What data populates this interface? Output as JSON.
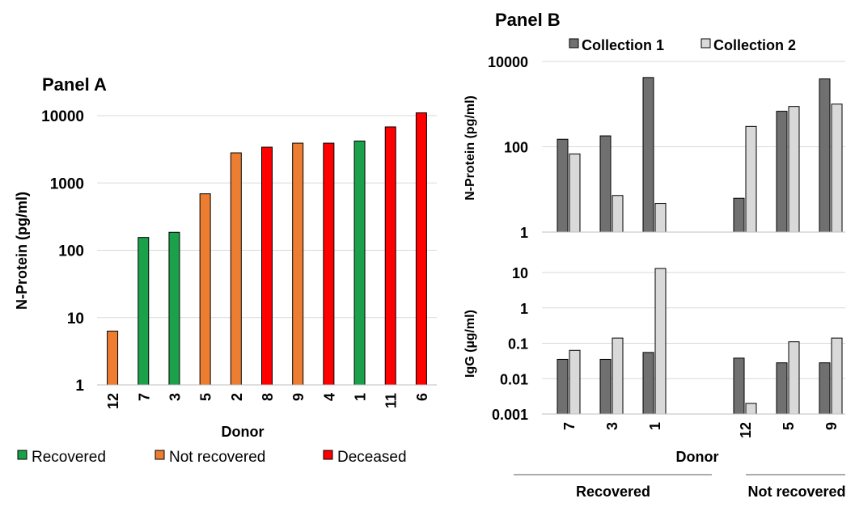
{
  "panelA": {
    "title": "Panel A",
    "chart_data": {
      "type": "bar",
      "yscale": "log",
      "ylim": [
        1,
        10000
      ],
      "ylabel": "N-Protein (pg/ml)",
      "xlabel": "Donor",
      "categories": [
        "12",
        "7",
        "3",
        "5",
        "2",
        "8",
        "9",
        "4",
        "1",
        "11",
        "6"
      ],
      "values": [
        6.3,
        155,
        185,
        690,
        2800,
        3400,
        3900,
        3900,
        4200,
        6800,
        11000
      ],
      "status": [
        "Not recovered",
        "Recovered",
        "Recovered",
        "Not recovered",
        "Not recovered",
        "Deceased",
        "Not recovered",
        "Deceased",
        "Recovered",
        "Deceased",
        "Deceased"
      ],
      "yticks": [
        "1",
        "10",
        "100",
        "1000",
        "10000"
      ],
      "legend": [
        {
          "label": "Recovered",
          "color": "#1aa14a"
        },
        {
          "label": "Not recovered",
          "color": "#ed7d31"
        },
        {
          "label": "Deceased",
          "color": "#ff0000"
        }
      ]
    }
  },
  "panelB": {
    "title": "Panel B",
    "legend": [
      {
        "label": "Collection 1",
        "color": "#707070"
      },
      {
        "label": "Collection 2",
        "color": "#d9d9d9"
      }
    ],
    "chart_data": [
      {
        "type": "bar",
        "yscale": "log",
        "ylabel": "N-Protein (pg/ml)",
        "ylim": [
          1,
          10000
        ],
        "yticks": [
          "1",
          "100",
          "10000"
        ],
        "categories": [
          "7",
          "3",
          "1",
          "12",
          "5",
          "9"
        ],
        "series": [
          {
            "name": "Collection 1",
            "values": [
              150,
              180,
              4200,
              6.2,
              680,
              3900
            ]
          },
          {
            "name": "Collection 2",
            "values": [
              68,
              7.2,
              4.7,
              300,
              880,
              1000
            ]
          }
        ]
      },
      {
        "type": "bar",
        "yscale": "log",
        "ylabel": "IgG (µg/ml)",
        "ylim": [
          0.001,
          10
        ],
        "yticks": [
          "0.001",
          "0.01",
          "0.1",
          "1",
          "10"
        ],
        "categories": [
          "7",
          "3",
          "1",
          "12",
          "5",
          "9"
        ],
        "series": [
          {
            "name": "Collection 1",
            "values": [
              0.035,
              0.035,
              0.055,
              0.038,
              0.028,
              0.028
            ]
          },
          {
            "name": "Collection 2",
            "values": [
              0.063,
              0.14,
              13,
              0.002,
              0.11,
              0.14
            ]
          }
        ]
      }
    ],
    "xlabel": "Donor",
    "groups": [
      "Recovered",
      "Not recovered"
    ]
  }
}
